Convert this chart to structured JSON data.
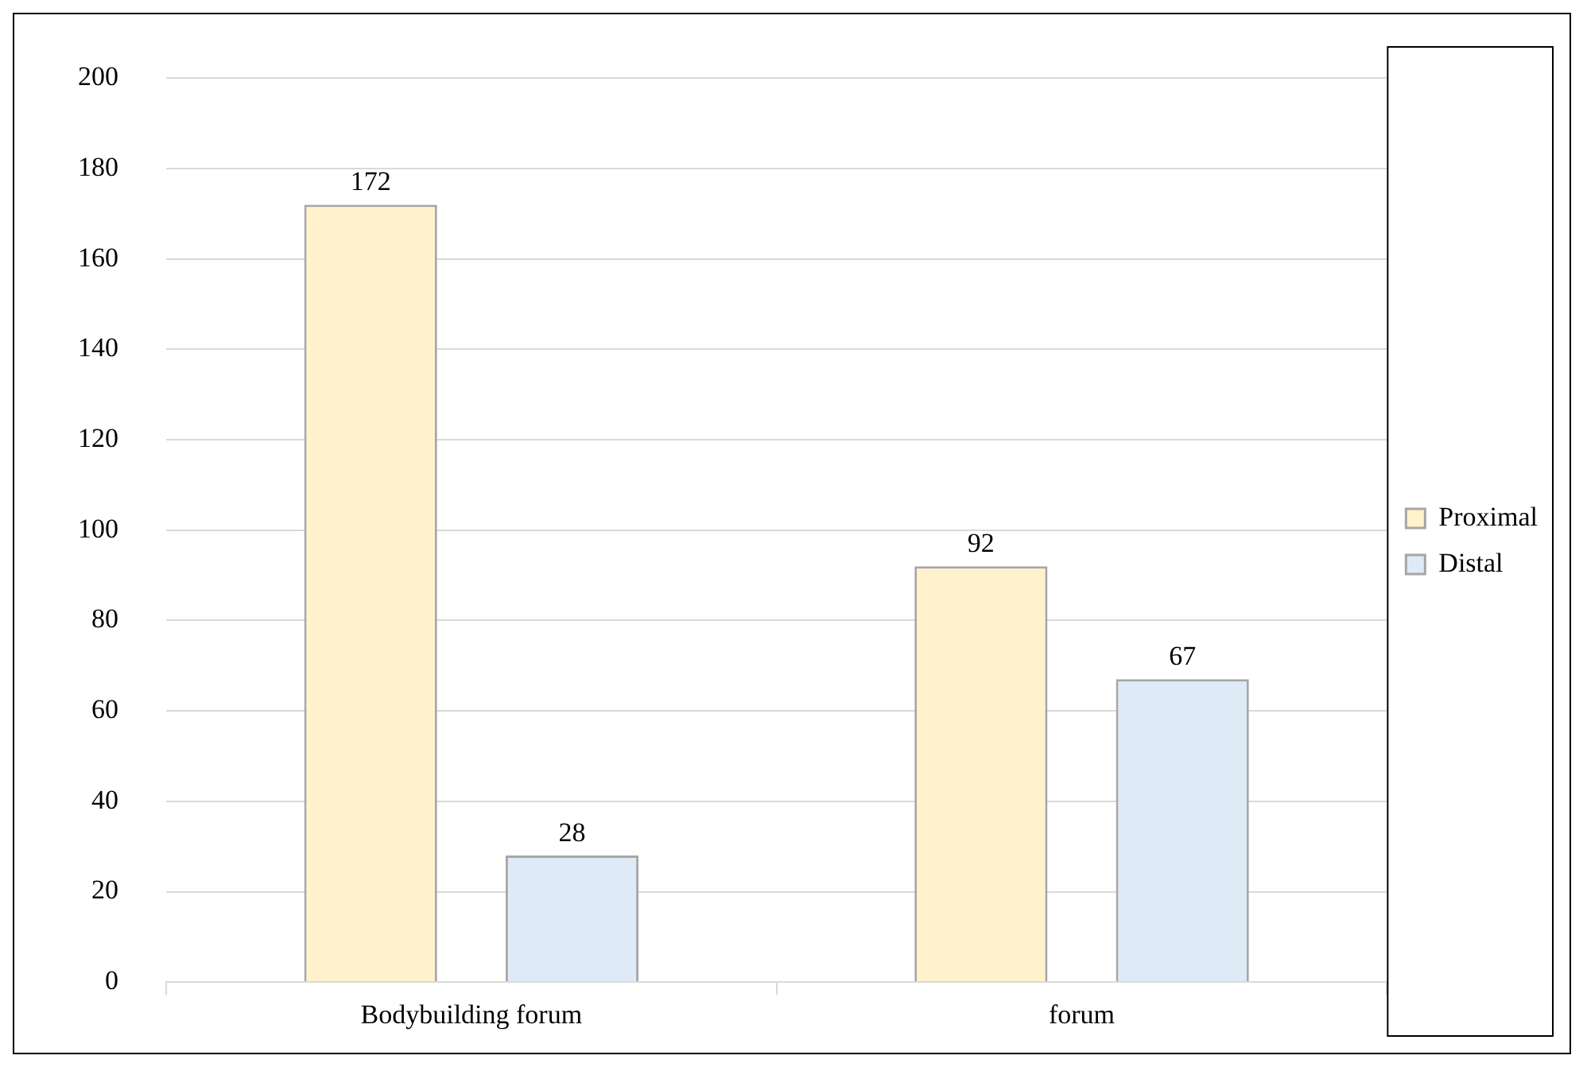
{
  "chart_data": {
    "type": "bar",
    "categories": [
      "Bodybuilding forum",
      "forum"
    ],
    "series": [
      {
        "name": "Proximal",
        "color": "#fff2cc",
        "values": [
          172,
          92
        ]
      },
      {
        "name": "Distal",
        "color": "#deebf7",
        "values": [
          28,
          67
        ]
      }
    ],
    "ylim": [
      0,
      200
    ],
    "yticks": [
      0,
      20,
      40,
      60,
      80,
      100,
      120,
      140,
      160,
      180,
      200
    ],
    "grid": "y",
    "legend": "right",
    "data_labels": true
  }
}
